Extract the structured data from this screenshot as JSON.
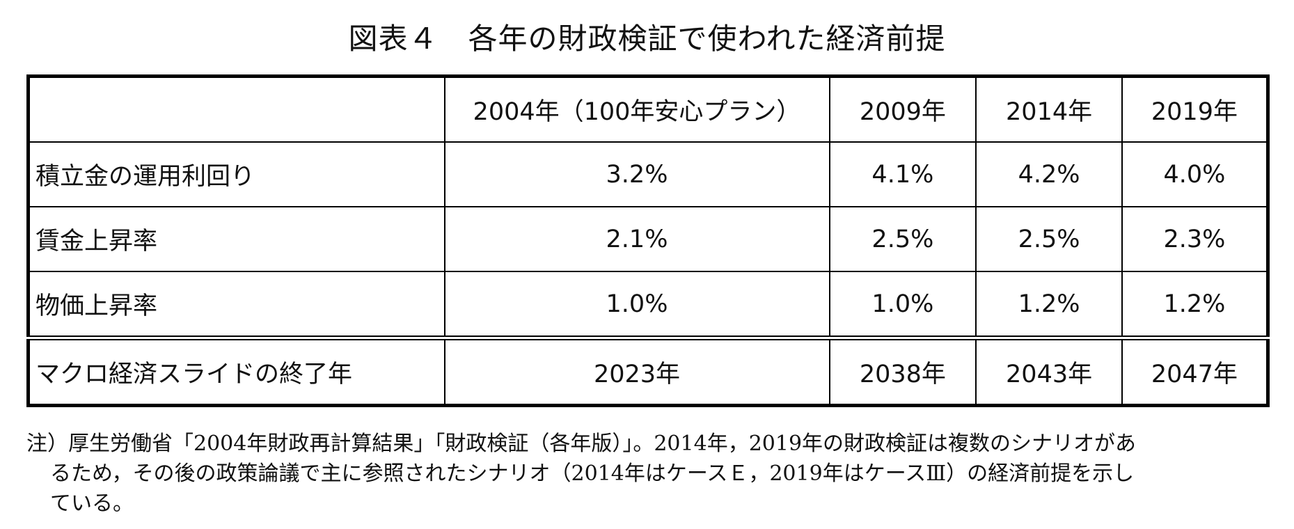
{
  "title": "図表４　各年の財政検証で使われた経済前提",
  "table": {
    "columns": [
      "",
      "2004年（100年安心プラン）",
      "2009年",
      "2014年",
      "2019年"
    ],
    "rows": [
      {
        "label": "積立金の運用利回り",
        "values": [
          "3.2%",
          "4.1%",
          "4.2%",
          "4.0%"
        ]
      },
      {
        "label": "賃金上昇率",
        "values": [
          "2.1%",
          "2.5%",
          "2.5%",
          "2.3%"
        ]
      },
      {
        "label": "物価上昇率",
        "values": [
          "1.0%",
          "1.0%",
          "1.2%",
          "1.2%"
        ]
      },
      {
        "label": "マクロ経済スライドの終了年",
        "values": [
          "2023年",
          "2038年",
          "2043年",
          "2047年"
        ]
      }
    ]
  },
  "note": {
    "line1": "注）厚生労働省「2004年財政再計算結果」「財政検証（各年版）」。2014年，2019年の財政検証は複数のシナリオがあ",
    "line2": "るため，その後の政策論議で主に参照されたシナリオ（2014年はケースＥ，2019年はケースⅢ）の経済前提を示し",
    "line3": "ている。"
  }
}
